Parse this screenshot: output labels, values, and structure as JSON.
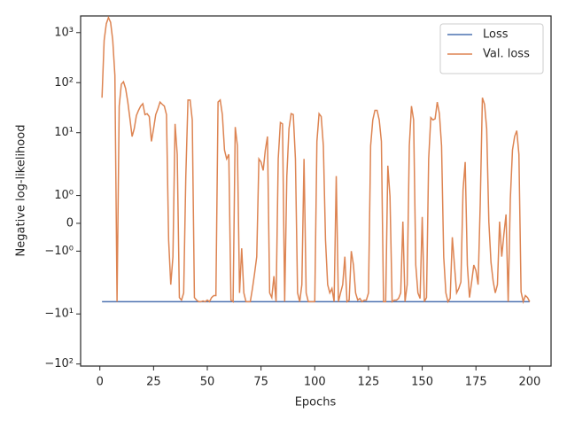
{
  "chart_data": {
    "type": "line",
    "xlabel": "Epochs",
    "ylabel": "Negative log-likelihood",
    "yscale": "symlog",
    "linthresh": 2,
    "xlim": [
      -8.95,
      209.95
    ],
    "xticks": [
      0,
      25,
      50,
      75,
      100,
      125,
      150,
      175,
      200
    ],
    "ylim": [
      -110,
      2150
    ],
    "yticks": [
      {
        "value": 1000,
        "label": "10³"
      },
      {
        "value": 100,
        "label": "10²"
      },
      {
        "value": 10,
        "label": "10¹"
      },
      {
        "value": 1,
        "label": "10⁰"
      },
      0,
      {
        "value": -1,
        "label": "−10⁰"
      },
      {
        "value": -10,
        "label": "−10¹"
      },
      {
        "value": -100,
        "label": "−10²"
      }
    ],
    "legend": "upper right",
    "x": [
      1,
      2,
      3,
      4,
      5,
      6,
      7,
      8,
      9,
      10,
      11,
      12,
      13,
      14,
      15,
      16,
      17,
      18,
      19,
      20,
      21,
      22,
      23,
      24,
      25,
      26,
      27,
      28,
      29,
      30,
      31,
      32,
      33,
      34,
      35,
      36,
      37,
      38,
      39,
      40,
      41,
      42,
      43,
      44,
      45,
      46,
      47,
      48,
      49,
      50,
      51,
      52,
      53,
      54,
      55,
      56,
      57,
      58,
      59,
      60,
      61,
      62,
      63,
      64,
      65,
      66,
      67,
      68,
      69,
      70,
      71,
      72,
      73,
      74,
      75,
      76,
      77,
      78,
      79,
      80,
      81,
      82,
      83,
      84,
      85,
      86,
      87,
      88,
      89,
      90,
      91,
      92,
      93,
      94,
      95,
      96,
      97,
      98,
      99,
      100,
      101,
      102,
      103,
      104,
      105,
      106,
      107,
      108,
      109,
      110,
      111,
      112,
      113,
      114,
      115,
      116,
      117,
      118,
      119,
      120,
      121,
      122,
      123,
      124,
      125,
      126,
      127,
      128,
      129,
      130,
      131,
      132,
      133,
      134,
      135,
      136,
      137,
      138,
      139,
      140,
      141,
      142,
      143,
      144,
      145,
      146,
      147,
      148,
      149,
      150,
      151,
      152,
      153,
      154,
      155,
      156,
      157,
      158,
      159,
      160,
      161,
      162,
      163,
      164,
      165,
      166,
      167,
      168,
      169,
      170,
      171,
      172,
      173,
      174,
      175,
      176,
      177,
      178,
      179,
      180,
      181,
      182,
      183,
      184,
      185,
      186,
      187,
      188,
      189,
      190,
      191,
      192,
      193,
      194,
      195,
      196,
      197,
      198,
      199,
      200
    ],
    "series": [
      {
        "name": "Loss",
        "color": "#4c72b0",
        "values": [
          -5.7,
          -5.7,
          -5.7,
          -5.7,
          -5.7,
          -5.7,
          -5.7,
          -5.7,
          -5.7,
          -5.7,
          -5.7,
          -5.7,
          -5.7,
          -5.7,
          -5.7,
          -5.7,
          -5.7,
          -5.7,
          -5.7,
          -5.7,
          -5.7,
          -5.7,
          -5.7,
          -5.7,
          -5.7,
          -5.7,
          -5.7,
          -5.7,
          -5.7,
          -5.7,
          -5.7,
          -5.7,
          -5.7,
          -5.7,
          -5.7,
          -5.7,
          -5.7,
          -5.7,
          -5.7,
          -5.7,
          -5.7,
          -5.7,
          -5.7,
          -5.7,
          -5.7,
          -5.7,
          -5.7,
          -5.7,
          -5.7,
          -5.7,
          -5.7,
          -5.7,
          -5.7,
          -5.7,
          -5.7,
          -5.7,
          -5.7,
          -5.7,
          -5.7,
          -5.7,
          -5.7,
          -5.7,
          -5.7,
          -5.7,
          -5.7,
          -5.7,
          -5.7,
          -5.7,
          -5.7,
          -5.7,
          -5.7,
          -5.7,
          -5.7,
          -5.7,
          -5.7,
          -5.7,
          -5.7,
          -5.7,
          -5.7,
          -5.7,
          -5.7,
          -5.7,
          -5.7,
          -5.7,
          -5.7,
          -5.7,
          -5.7,
          -5.7,
          -5.7,
          -5.7,
          -5.7,
          -5.7,
          -5.7,
          -5.7,
          -5.7,
          -5.7,
          -5.7,
          -5.7,
          -5.7,
          -5.7,
          -5.7,
          -5.7,
          -5.7,
          -5.7,
          -5.7,
          -5.7,
          -5.7,
          -5.7,
          -5.7,
          -5.7,
          -5.7,
          -5.7,
          -5.7,
          -5.7,
          -5.7,
          -5.7,
          -5.7,
          -5.7,
          -5.7,
          -5.7,
          -5.7,
          -5.7,
          -5.7,
          -5.7,
          -5.7,
          -5.7,
          -5.7,
          -5.7,
          -5.7,
          -5.7,
          -5.7,
          -5.7,
          -5.7,
          -5.7,
          -5.7,
          -5.7,
          -5.7,
          -5.7,
          -5.7,
          -5.7,
          -5.7,
          -5.7,
          -5.7,
          -5.7,
          -5.7,
          -5.7,
          -5.7,
          -5.7,
          -5.7,
          -5.7,
          -5.7,
          -5.7,
          -5.7,
          -5.7,
          -5.7,
          -5.7,
          -5.7,
          -5.7,
          -5.7,
          -5.7,
          -5.7,
          -5.7,
          -5.7,
          -5.7,
          -5.7,
          -5.7,
          -5.7,
          -5.7,
          -5.7,
          -5.7,
          -5.7,
          -5.7,
          -5.7,
          -5.7,
          -5.7,
          -5.7,
          -5.7,
          -5.7,
          -5.7,
          -5.7,
          -5.7,
          -5.7,
          -5.7,
          -5.7,
          -5.7,
          -5.7,
          -5.7,
          -5.7,
          -5.7,
          -5.7,
          -5.7,
          -5.7,
          -5.7,
          -5.7,
          -5.7,
          -5.7,
          -5.7,
          -5.7,
          -5.7,
          -5.7
        ]
      },
      {
        "name": "Val. loss",
        "color": "#dd8452",
        "values": [
          50,
          700,
          1500,
          2000,
          1600,
          700,
          140,
          -5.7,
          34,
          93,
          104,
          76,
          41,
          19,
          8.4,
          12,
          22,
          28,
          34,
          38,
          23,
          24,
          21,
          6.7,
          12,
          23,
          30,
          41,
          37,
          34,
          23,
          -0.6,
          -2.6,
          -1.2,
          15,
          3.7,
          -4.7,
          -5.3,
          -3.8,
          1.7,
          45,
          45,
          18,
          -4.7,
          -5.3,
          -5.7,
          -5.7,
          -5.5,
          -5.7,
          -5.3,
          -5.7,
          -4.7,
          -4.3,
          -4.3,
          41,
          45,
          23,
          4.5,
          3,
          3.7,
          -5.3,
          -5.7,
          13,
          5.5,
          -3.8,
          -0.9,
          -3.8,
          -5.7,
          -5.7,
          -5.7,
          -3.1,
          -1.8,
          -1.2,
          3,
          2.6,
          1.9,
          4.5,
          8.4,
          -3.8,
          -4.7,
          -1.9,
          -5.7,
          3,
          16,
          15,
          -5.7,
          1.7,
          12,
          24,
          23,
          3,
          -3.8,
          -5.7,
          -2.6,
          3,
          -3.8,
          -5.7,
          -5.7,
          -5.7,
          -5.7,
          6.7,
          24,
          21,
          5.5,
          -0.6,
          -2.6,
          -3.8,
          -3.1,
          -5.7,
          1.7,
          -5.7,
          -3.8,
          -2.6,
          -1.2,
          -5.7,
          -5.3,
          -1,
          -1.5,
          -3.8,
          -5.3,
          -4.9,
          -5.7,
          -5.3,
          -5.3,
          -3.8,
          5.5,
          18,
          28,
          28,
          18,
          6.7,
          -5.7,
          -5.7,
          2.2,
          0.97,
          -5.7,
          -5.3,
          -5.3,
          -4.9,
          -3.8,
          0.06,
          -5.7,
          -2.6,
          5.5,
          34,
          18,
          -1.5,
          -3.8,
          -4.9,
          0.23,
          -5.7,
          -4.7,
          3,
          20,
          18,
          19,
          41,
          24,
          5.5,
          -1.2,
          -3.8,
          -5.7,
          -4.9,
          -0.5,
          -1.5,
          -3.8,
          -3.1,
          -2.3,
          1.2,
          2.6,
          -1.5,
          -4.7,
          -2.3,
          -1.5,
          -1.7,
          -2.6,
          0.71,
          50,
          37,
          12,
          0.06,
          -1.4,
          -2.2,
          -3.8,
          -2.6,
          0.06,
          -1.2,
          -0.4,
          0.32,
          -5.7,
          0.87,
          4.5,
          8.4,
          11,
          3.7,
          -3.6,
          -5.7,
          -4.3,
          -4.7,
          -5.7
        ]
      }
    ]
  }
}
